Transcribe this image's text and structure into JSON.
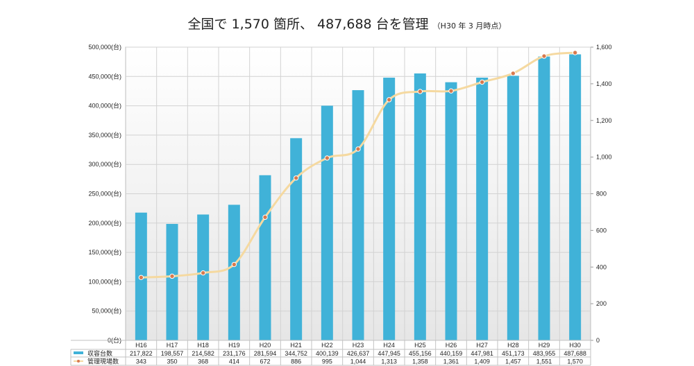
{
  "title": {
    "main": "全国で 1,570 箇所、 487,688 台を管理",
    "sub": "（H30 年 3 月時点）"
  },
  "chart_data": {
    "type": "bar",
    "categories": [
      "H16",
      "H17",
      "H18",
      "H19",
      "H20",
      "H21",
      "H22",
      "H23",
      "H24",
      "H25",
      "H26",
      "H27",
      "H28",
      "H29",
      "H30"
    ],
    "series": [
      {
        "name": "収容台数",
        "type": "bar",
        "axis": "left",
        "color": "#40b2d8",
        "values": [
          217822,
          198557,
          214582,
          231176,
          281594,
          344752,
          400139,
          426637,
          447945,
          455156,
          440159,
          447981,
          451173,
          483955,
          487688
        ],
        "labels": [
          "217,822",
          "198,557",
          "214,582",
          "231,176",
          "281,594",
          "344,752",
          "400,139",
          "426,637",
          "447,945",
          "455,156",
          "440,159",
          "447,981",
          "451,173",
          "483,955",
          "487,688"
        ]
      },
      {
        "name": "管理現場数",
        "type": "line",
        "axis": "right",
        "color": "#f5d9a0",
        "marker_color": "#d87a4e",
        "values": [
          343,
          350,
          368,
          414,
          672,
          886,
          995,
          1044,
          1313,
          1358,
          1361,
          1409,
          1457,
          1551,
          1570
        ],
        "labels": [
          "343",
          "350",
          "368",
          "414",
          "672",
          "886",
          "995",
          "1,044",
          "1,313",
          "1,358",
          "1,361",
          "1,409",
          "1,457",
          "1,551",
          "1,570"
        ]
      }
    ],
    "y_left": {
      "range": [
        0,
        500000
      ],
      "ticks": [
        0,
        50000,
        100000,
        150000,
        200000,
        250000,
        300000,
        350000,
        400000,
        450000,
        500000
      ],
      "tick_labels": [
        "0(台)",
        "50,000(台)",
        "100,000(台)",
        "150,000(台)",
        "200,000(台)",
        "250,000(台)",
        "300,000(台)",
        "350,000(台)",
        "400,000(台)",
        "450,000(台)",
        "500,000(台)"
      ]
    },
    "y_right": {
      "range": [
        0,
        1600
      ],
      "ticks": [
        0,
        200,
        400,
        600,
        800,
        1000,
        1200,
        1400,
        1600
      ],
      "tick_labels": [
        "0",
        "200",
        "400",
        "600",
        "800",
        "1,000",
        "1,200",
        "1,400",
        "1,600"
      ]
    },
    "grid": true,
    "legend": "data-table-bottom"
  }
}
